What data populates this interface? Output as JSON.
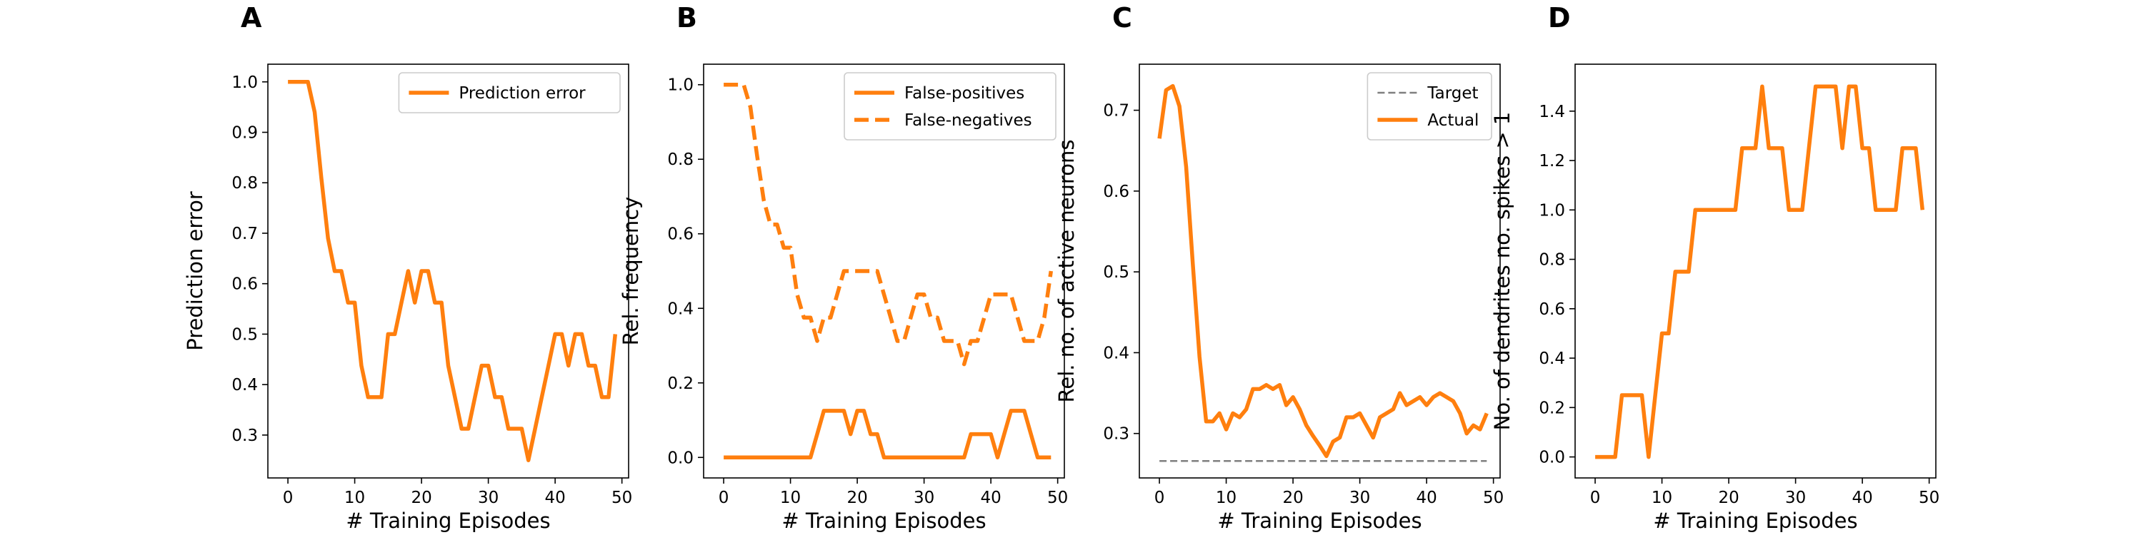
{
  "colors": {
    "series": "#ff7f0e",
    "target": "#7f7f7f",
    "axes": "#000000",
    "legend_border": "#cccccc"
  },
  "chart_data": [
    {
      "panel": "A",
      "type": "line",
      "xlabel": "# Training Episodes",
      "ylabel": "Prediction error",
      "xlim": [
        -3,
        51
      ],
      "ylim": [
        0.215,
        1.035
      ],
      "xticks": [
        0,
        10,
        20,
        30,
        40,
        50
      ],
      "yticks": [
        0.3,
        0.4,
        0.5,
        0.6,
        0.7,
        0.8,
        0.9,
        1.0
      ],
      "ytick_labels": [
        "0.3",
        "0.4",
        "0.5",
        "0.6",
        "0.7",
        "0.8",
        "0.9",
        "1.0"
      ],
      "legend_position": "top-right",
      "series": [
        {
          "name": "Prediction error",
          "style": "solid",
          "color": "#ff7f0e",
          "x": [
            0,
            1,
            2,
            3,
            4,
            5,
            6,
            7,
            8,
            9,
            10,
            11,
            12,
            13,
            14,
            15,
            16,
            17,
            18,
            19,
            20,
            21,
            22,
            23,
            24,
            25,
            26,
            27,
            28,
            29,
            30,
            31,
            32,
            33,
            34,
            35,
            36,
            37,
            38,
            39,
            40,
            41,
            42,
            43,
            44,
            45,
            46,
            47,
            48,
            49
          ],
          "y": [
            1.0,
            1.0,
            1.0,
            1.0,
            0.94,
            0.81,
            0.69,
            0.625,
            0.625,
            0.5625,
            0.5625,
            0.4375,
            0.375,
            0.375,
            0.375,
            0.5,
            0.5,
            0.5625,
            0.625,
            0.5625,
            0.625,
            0.625,
            0.5625,
            0.5625,
            0.4375,
            0.375,
            0.3125,
            0.3125,
            0.375,
            0.4375,
            0.4375,
            0.375,
            0.375,
            0.3125,
            0.3125,
            0.3125,
            0.25,
            0.3125,
            0.375,
            0.4375,
            0.5,
            0.5,
            0.4375,
            0.5,
            0.5,
            0.4375,
            0.4375,
            0.375,
            0.375,
            0.5
          ]
        }
      ]
    },
    {
      "panel": "B",
      "type": "line",
      "xlabel": "# Training Episodes",
      "ylabel": "Rel. frequency",
      "xlim": [
        -3,
        51
      ],
      "ylim": [
        -0.055,
        1.055
      ],
      "xticks": [
        0,
        10,
        20,
        30,
        40,
        50
      ],
      "yticks": [
        0.0,
        0.2,
        0.4,
        0.6,
        0.8,
        1.0
      ],
      "ytick_labels": [
        "0.0",
        "0.2",
        "0.4",
        "0.6",
        "0.8",
        "1.0"
      ],
      "legend_position": "top-right",
      "series": [
        {
          "name": "False-positives",
          "style": "solid",
          "color": "#ff7f0e",
          "x": [
            0,
            1,
            2,
            3,
            4,
            5,
            6,
            7,
            8,
            9,
            10,
            11,
            12,
            13,
            14,
            15,
            16,
            17,
            18,
            19,
            20,
            21,
            22,
            23,
            24,
            25,
            26,
            27,
            28,
            29,
            30,
            31,
            32,
            33,
            34,
            35,
            36,
            37,
            38,
            39,
            40,
            41,
            42,
            43,
            44,
            45,
            46,
            47,
            48,
            49
          ],
          "y": [
            0,
            0,
            0,
            0,
            0,
            0,
            0,
            0,
            0,
            0,
            0,
            0,
            0,
            0,
            0.0625,
            0.125,
            0.125,
            0.125,
            0.125,
            0.0625,
            0.125,
            0.125,
            0.0625,
            0.0625,
            0,
            0,
            0,
            0,
            0,
            0,
            0,
            0,
            0,
            0,
            0,
            0,
            0,
            0.0625,
            0.0625,
            0.0625,
            0.0625,
            0,
            0.0625,
            0.125,
            0.125,
            0.125,
            0.0625,
            0,
            0,
            0
          ]
        },
        {
          "name": "False-negatives",
          "style": "dashed",
          "color": "#ff7f0e",
          "x": [
            0,
            1,
            2,
            3,
            4,
            5,
            6,
            7,
            8,
            9,
            10,
            11,
            12,
            13,
            14,
            15,
            16,
            17,
            18,
            19,
            20,
            21,
            22,
            23,
            24,
            25,
            26,
            27,
            28,
            29,
            30,
            31,
            32,
            33,
            34,
            35,
            36,
            37,
            38,
            39,
            40,
            41,
            42,
            43,
            44,
            45,
            46,
            47,
            48,
            49
          ],
          "y": [
            1.0,
            1.0,
            1.0,
            1.0,
            0.94,
            0.81,
            0.69,
            0.625,
            0.625,
            0.5625,
            0.5625,
            0.4375,
            0.375,
            0.375,
            0.3125,
            0.375,
            0.375,
            0.4375,
            0.5,
            0.5,
            0.5,
            0.5,
            0.5,
            0.5,
            0.4375,
            0.375,
            0.3125,
            0.3125,
            0.375,
            0.4375,
            0.4375,
            0.375,
            0.375,
            0.3125,
            0.3125,
            0.3125,
            0.25,
            0.3125,
            0.3125,
            0.375,
            0.4375,
            0.4375,
            0.4375,
            0.4375,
            0.375,
            0.3125,
            0.3125,
            0.3125,
            0.375,
            0.5
          ]
        }
      ]
    },
    {
      "panel": "C",
      "type": "line",
      "xlabel": "# Training Episodes",
      "ylabel": "Rel. no. of active neurons",
      "xlim": [
        -3,
        51
      ],
      "ylim": [
        0.245,
        0.757
      ],
      "xticks": [
        0,
        10,
        20,
        30,
        40,
        50
      ],
      "yticks": [
        0.3,
        0.4,
        0.5,
        0.6,
        0.7
      ],
      "ytick_labels": [
        "0.3",
        "0.4",
        "0.5",
        "0.6",
        "0.7"
      ],
      "legend_position": "top-right",
      "series": [
        {
          "name": "Target",
          "style": "dashed-thin",
          "color": "#7f7f7f",
          "x": [
            0,
            49
          ],
          "y": [
            0.266,
            0.266
          ]
        },
        {
          "name": "Actual",
          "style": "solid",
          "color": "#ff7f0e",
          "x": [
            0,
            1,
            2,
            3,
            4,
            5,
            6,
            7,
            8,
            9,
            10,
            11,
            12,
            13,
            14,
            15,
            16,
            17,
            18,
            19,
            20,
            21,
            22,
            23,
            24,
            25,
            26,
            27,
            28,
            29,
            30,
            31,
            32,
            33,
            34,
            35,
            36,
            37,
            38,
            39,
            40,
            41,
            42,
            43,
            44,
            45,
            46,
            47,
            48,
            49
          ],
          "y": [
            0.665,
            0.725,
            0.73,
            0.705,
            0.63,
            0.51,
            0.395,
            0.315,
            0.315,
            0.325,
            0.305,
            0.325,
            0.32,
            0.33,
            0.355,
            0.355,
            0.36,
            0.355,
            0.36,
            0.335,
            0.345,
            0.33,
            0.31,
            0.297,
            0.285,
            0.272,
            0.29,
            0.295,
            0.32,
            0.32,
            0.325,
            0.31,
            0.295,
            0.32,
            0.325,
            0.33,
            0.35,
            0.335,
            0.34,
            0.345,
            0.335,
            0.345,
            0.35,
            0.345,
            0.34,
            0.325,
            0.3,
            0.31,
            0.305,
            0.325
          ]
        }
      ]
    },
    {
      "panel": "D",
      "type": "line",
      "xlabel": "# Training Episodes",
      "ylabel": "No. of dendrites no. spikes > 1",
      "xlim": [
        -3,
        51
      ],
      "ylim": [
        -0.085,
        1.59
      ],
      "xticks": [
        0,
        10,
        20,
        30,
        40,
        50
      ],
      "yticks": [
        0.0,
        0.2,
        0.4,
        0.6,
        0.8,
        1.0,
        1.2,
        1.4
      ],
      "ytick_labels": [
        "0.0",
        "0.2",
        "0.4",
        "0.6",
        "0.8",
        "1.0",
        "1.2",
        "1.4"
      ],
      "series": [
        {
          "style": "solid",
          "color": "#ff7f0e",
          "x": [
            0,
            1,
            2,
            3,
            4,
            5,
            6,
            7,
            8,
            9,
            10,
            11,
            12,
            13,
            14,
            15,
            16,
            17,
            18,
            19,
            20,
            21,
            22,
            23,
            24,
            25,
            26,
            27,
            28,
            29,
            30,
            31,
            32,
            33,
            34,
            35,
            36,
            37,
            38,
            39,
            40,
            41,
            42,
            43,
            44,
            45,
            46,
            47,
            48,
            49
          ],
          "y": [
            0,
            0,
            0,
            0,
            0.25,
            0.25,
            0.25,
            0.25,
            0,
            0.25,
            0.5,
            0.5,
            0.75,
            0.75,
            0.75,
            1.0,
            1.0,
            1.0,
            1.0,
            1.0,
            1.0,
            1.0,
            1.25,
            1.25,
            1.25,
            1.5,
            1.25,
            1.25,
            1.25,
            1.0,
            1.0,
            1.0,
            1.25,
            1.5,
            1.5,
            1.5,
            1.5,
            1.25,
            1.5,
            1.5,
            1.25,
            1.25,
            1.0,
            1.0,
            1.0,
            1.0,
            1.25,
            1.25,
            1.25,
            1.0
          ]
        }
      ]
    }
  ]
}
